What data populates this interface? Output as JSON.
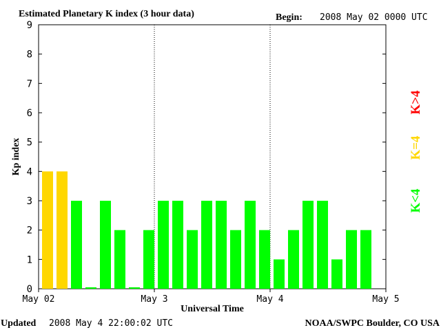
{
  "header": {
    "title": "Estimated Planetary K index (3 hour data)",
    "begin_label": "Begin:",
    "begin_value": "2008 May 02 0000 UTC"
  },
  "footer": {
    "updated_label": "Updated",
    "updated_value": "2008 May  4 22:00:02 UTC",
    "source": "NOAA/SWPC Boulder, CO USA"
  },
  "legend": {
    "items": [
      {
        "label": "K>4",
        "color": "#ff0000"
      },
      {
        "label": "K=4",
        "color": "#ffd700"
      },
      {
        "label": "K<4",
        "color": "#00ff00"
      }
    ]
  },
  "colors": {
    "below4": "#00ff00",
    "equal4": "#ffd700",
    "above4": "#ff0000",
    "axis": "#000000"
  },
  "chart_data": {
    "type": "bar",
    "title": "Estimated Planetary K index (3 hour data)",
    "xlabel": "Universal Time",
    "ylabel": "Kp index",
    "ylim": [
      0,
      9
    ],
    "y_ticks": [
      "0",
      "1",
      "2",
      "3",
      "4",
      "5",
      "6",
      "7",
      "8",
      "9"
    ],
    "x_ticks": [
      "May 02",
      "May 3",
      "May 4",
      "May 5"
    ],
    "bins_per_day": 8,
    "days": 3,
    "values": [
      4,
      4,
      3,
      0.05,
      3,
      2,
      0.05,
      2,
      3,
      3,
      2,
      3,
      3,
      2,
      3,
      2,
      1,
      2,
      3,
      3,
      1,
      2,
      2
    ],
    "grid": "dotted vertical lines at day boundaries",
    "legend_position": "right"
  }
}
